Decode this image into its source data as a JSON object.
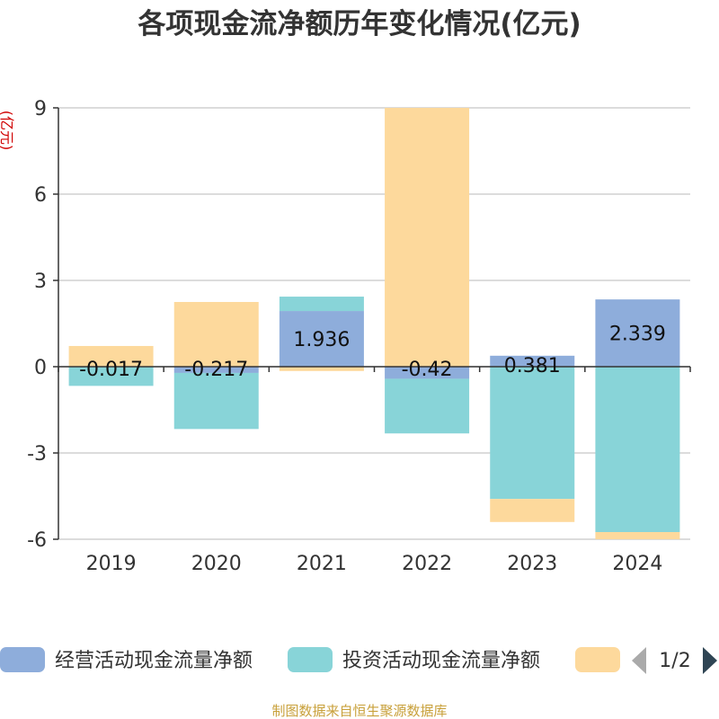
{
  "page": {
    "source": "制图数据来自恒生聚源数据库"
  },
  "legend": {
    "pager_text": "1/2",
    "prev_icon": "chevron-left-icon",
    "next_icon": "chevron-right-icon"
  },
  "chart_data": {
    "type": "bar",
    "stacked": true,
    "title": "各项现金流净额历年变化情况(亿元)",
    "ylabel": "(亿元)",
    "xlabel": "",
    "categories": [
      "2019",
      "2020",
      "2021",
      "2022",
      "2023",
      "2024"
    ],
    "ylim": [
      -6,
      9
    ],
    "yticks": [
      -6,
      -3,
      0,
      3,
      6,
      9
    ],
    "grid": true,
    "series": [
      {
        "name": "经营活动现金流量净额",
        "color": "#8eaddb",
        "values": [
          -0.017,
          -0.217,
          1.936,
          -0.42,
          0.381,
          2.339
        ],
        "labels": [
          "-0.017",
          "-0.217",
          "1.936",
          "-0.42",
          "0.381",
          "2.339"
        ]
      },
      {
        "name": "投资活动现金流量净额",
        "color": "#88d4d8",
        "values": [
          -0.65,
          -1.95,
          0.5,
          -1.9,
          -4.6,
          -5.75
        ]
      },
      {
        "name": "",
        "color": "#fdd99c",
        "values": [
          0.72,
          2.25,
          -0.15,
          9.0,
          -0.8,
          -0.25
        ]
      }
    ]
  }
}
